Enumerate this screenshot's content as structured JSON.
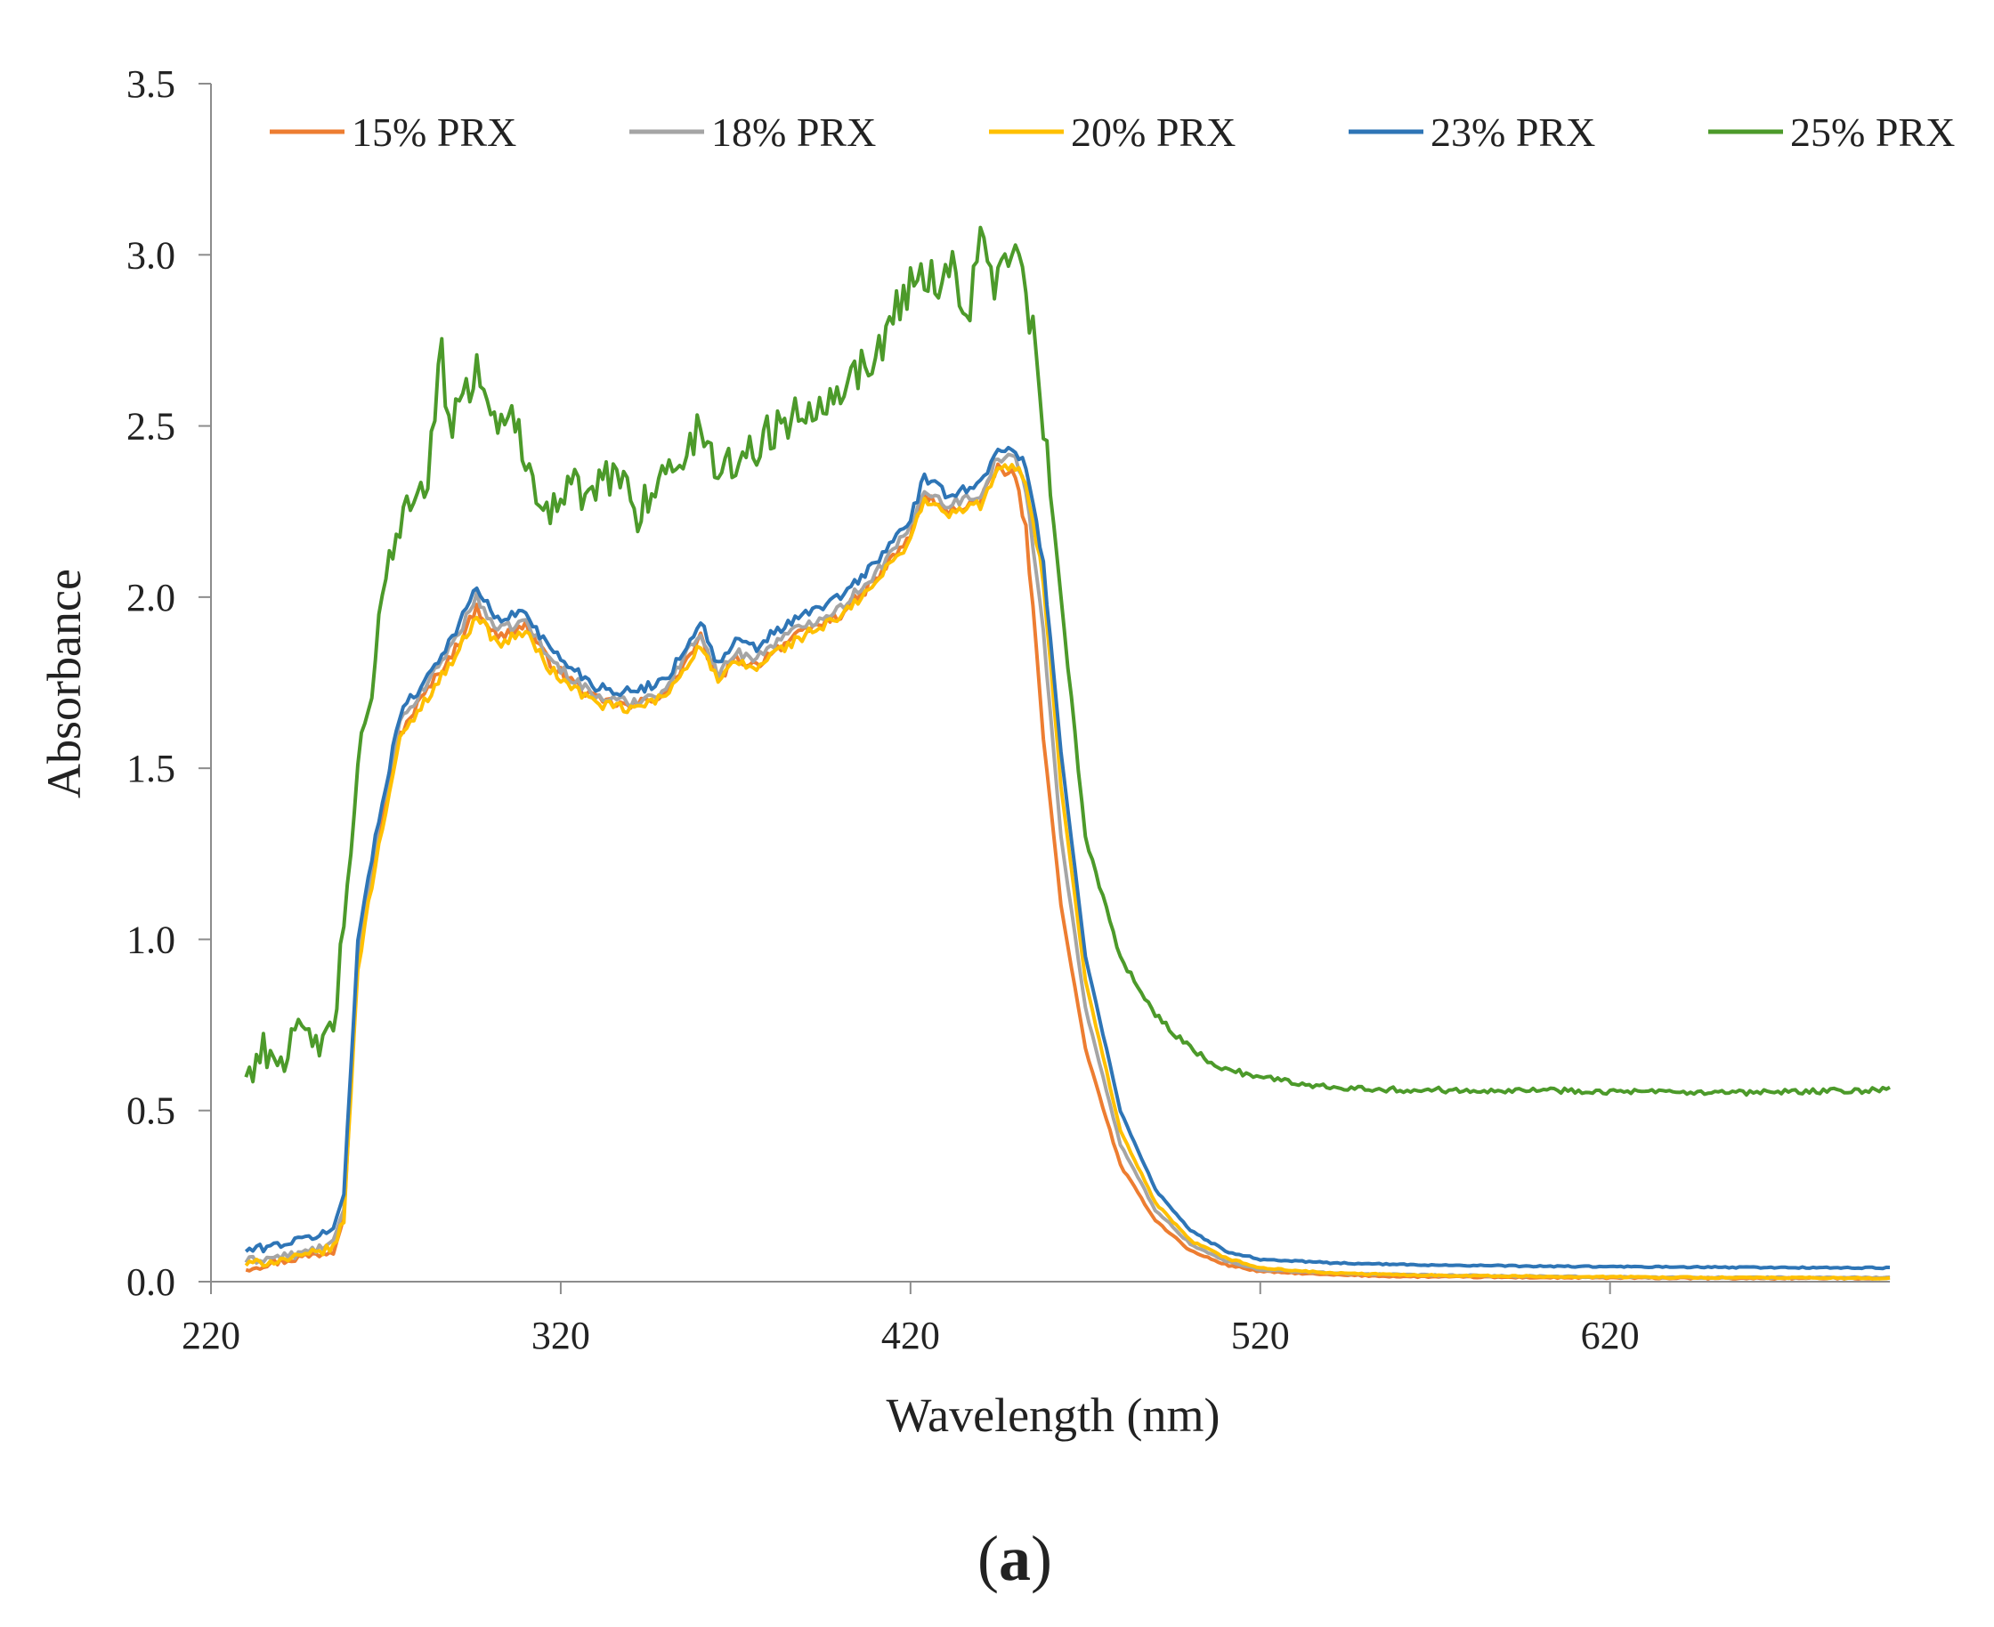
{
  "chart_data": {
    "type": "line",
    "title": "",
    "panel_label": "(a)",
    "xlabel": "Wavelength (nm)",
    "ylabel": "Absorbance",
    "xlim": [
      220,
      700
    ],
    "ylim": [
      0,
      3.5
    ],
    "x_ticks": [
      220,
      320,
      420,
      520,
      620
    ],
    "x_tick_labels": [
      "220",
      "320",
      "420",
      "520",
      "620"
    ],
    "y_ticks": [
      0,
      0.5,
      1.0,
      1.5,
      2.0,
      2.5,
      3.0,
      3.5
    ],
    "y_tick_labels": [
      "0.0",
      "0.5",
      "1.0",
      "1.5",
      "2.0",
      "2.5",
      "3.0",
      "3.5"
    ],
    "grid": false,
    "legend_position": "top",
    "series": [
      {
        "name": "15% PRX",
        "color": "#ED7D31",
        "x": [
          230,
          245,
          255,
          258,
          262,
          268,
          274,
          280,
          290,
          296,
          302,
          310,
          316,
          320,
          330,
          340,
          350,
          355,
          360,
          365,
          370,
          376,
          380,
          390,
          400,
          410,
          420,
          424,
          430,
          440,
          445,
          450,
          453,
          458,
          463,
          470,
          480,
          490,
          500,
          510,
          520,
          540,
          560,
          600,
          650,
          700
        ],
        "y": [
          0.04,
          0.07,
          0.09,
          0.2,
          0.95,
          1.3,
          1.6,
          1.7,
          1.85,
          1.97,
          1.88,
          1.92,
          1.82,
          1.78,
          1.7,
          1.68,
          1.72,
          1.8,
          1.88,
          1.76,
          1.82,
          1.8,
          1.84,
          1.9,
          1.95,
          2.05,
          2.18,
          2.3,
          2.25,
          2.28,
          2.38,
          2.35,
          2.2,
          1.6,
          1.1,
          0.68,
          0.34,
          0.18,
          0.09,
          0.05,
          0.03,
          0.02,
          0.015,
          0.012,
          0.01,
          0.01
        ]
      },
      {
        "name": "18% PRX",
        "color": "#A5A5A5",
        "x": [
          230,
          245,
          255,
          258,
          262,
          268,
          274,
          280,
          290,
          296,
          302,
          310,
          316,
          320,
          330,
          340,
          350,
          355,
          360,
          365,
          370,
          376,
          380,
          390,
          400,
          410,
          420,
          424,
          430,
          440,
          445,
          450,
          453,
          458,
          463,
          470,
          480,
          490,
          500,
          510,
          520,
          540,
          560,
          600,
          650,
          700
        ],
        "y": [
          0.06,
          0.08,
          0.11,
          0.22,
          0.98,
          1.33,
          1.63,
          1.72,
          1.88,
          2.0,
          1.9,
          1.93,
          1.83,
          1.79,
          1.71,
          1.69,
          1.73,
          1.82,
          1.9,
          1.77,
          1.84,
          1.82,
          1.86,
          1.92,
          1.97,
          2.07,
          2.2,
          2.32,
          2.27,
          2.3,
          2.41,
          2.4,
          2.32,
          1.9,
          1.3,
          0.8,
          0.4,
          0.21,
          0.11,
          0.06,
          0.035,
          0.025,
          0.02,
          0.015,
          0.012,
          0.012
        ]
      },
      {
        "name": "20% PRX",
        "color": "#FFC000",
        "x": [
          230,
          245,
          255,
          258,
          262,
          268,
          274,
          280,
          290,
          296,
          302,
          310,
          316,
          320,
          330,
          340,
          350,
          355,
          360,
          365,
          370,
          376,
          380,
          390,
          400,
          410,
          420,
          424,
          430,
          440,
          445,
          450,
          453,
          458,
          463,
          470,
          480,
          490,
          500,
          510,
          520,
          540,
          560,
          600,
          650,
          700
        ],
        "y": [
          0.05,
          0.07,
          0.1,
          0.18,
          0.92,
          1.28,
          1.58,
          1.68,
          1.83,
          1.95,
          1.86,
          1.9,
          1.8,
          1.76,
          1.69,
          1.67,
          1.71,
          1.79,
          1.86,
          1.75,
          1.81,
          1.79,
          1.83,
          1.89,
          1.94,
          2.04,
          2.17,
          2.29,
          2.24,
          2.27,
          2.37,
          2.38,
          2.34,
          2.05,
          1.45,
          0.88,
          0.44,
          0.23,
          0.12,
          0.07,
          0.04,
          0.025,
          0.02,
          0.015,
          0.012,
          0.01
        ]
      },
      {
        "name": "23% PRX",
        "color": "#2E75B6",
        "x": [
          230,
          245,
          255,
          258,
          262,
          268,
          274,
          280,
          290,
          296,
          302,
          310,
          316,
          320,
          330,
          340,
          350,
          355,
          360,
          365,
          370,
          376,
          380,
          390,
          400,
          410,
          420,
          424,
          430,
          440,
          445,
          450,
          453,
          458,
          463,
          470,
          480,
          490,
          500,
          510,
          520,
          540,
          560,
          600,
          650,
          700
        ],
        "y": [
          0.09,
          0.12,
          0.15,
          0.26,
          1.0,
          1.35,
          1.66,
          1.74,
          1.9,
          2.03,
          1.93,
          1.96,
          1.86,
          1.82,
          1.74,
          1.72,
          1.76,
          1.84,
          1.93,
          1.8,
          1.87,
          1.85,
          1.89,
          1.95,
          2.0,
          2.1,
          2.23,
          2.35,
          2.3,
          2.33,
          2.44,
          2.42,
          2.38,
          2.1,
          1.55,
          0.95,
          0.5,
          0.27,
          0.15,
          0.09,
          0.065,
          0.055,
          0.05,
          0.045,
          0.042,
          0.04
        ]
      },
      {
        "name": "25% PRX",
        "color": "#4C9A2A",
        "x": [
          230,
          235,
          240,
          245,
          250,
          255,
          258,
          262,
          266,
          270,
          276,
          282,
          286,
          288,
          292,
          296,
          300,
          304,
          308,
          312,
          318,
          322,
          330,
          336,
          342,
          346,
          350,
          356,
          360,
          364,
          370,
          376,
          382,
          390,
          400,
          410,
          416,
          422,
          428,
          432,
          436,
          440,
          444,
          448,
          452,
          456,
          460,
          465,
          470,
          480,
          490,
          500,
          510,
          520,
          530,
          540,
          560,
          600,
          650,
          700
        ],
        "y": [
          0.6,
          0.68,
          0.65,
          0.72,
          0.7,
          0.72,
          1.05,
          1.5,
          1.7,
          2.1,
          2.28,
          2.35,
          2.72,
          2.5,
          2.55,
          2.7,
          2.5,
          2.55,
          2.48,
          2.35,
          2.25,
          2.32,
          2.3,
          2.38,
          2.25,
          2.32,
          2.35,
          2.42,
          2.5,
          2.38,
          2.4,
          2.44,
          2.5,
          2.55,
          2.62,
          2.7,
          2.85,
          2.95,
          2.92,
          2.98,
          2.8,
          3.05,
          2.92,
          3.0,
          2.95,
          2.7,
          2.3,
          1.8,
          1.3,
          0.95,
          0.78,
          0.68,
          0.62,
          0.6,
          0.58,
          0.57,
          0.56,
          0.56,
          0.55,
          0.56
        ]
      }
    ]
  }
}
